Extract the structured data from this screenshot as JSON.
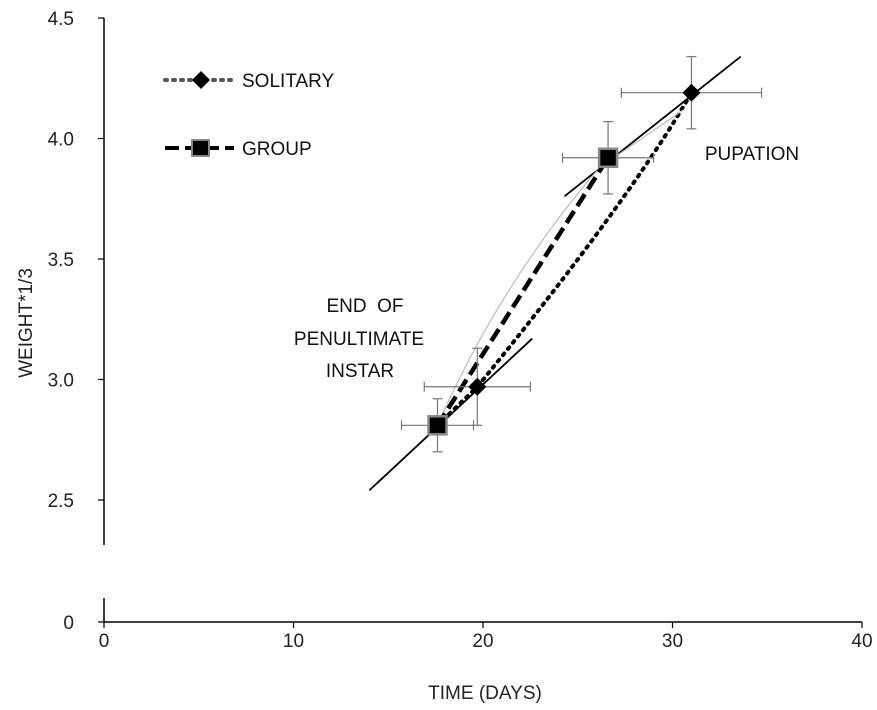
{
  "chart_data": {
    "type": "scatter",
    "title": "",
    "xlabel": "TIME (DAYS)",
    "ylabel": "WEIGHT*1/3",
    "xlim": [
      0,
      40
    ],
    "ylim_upper": [
      2.5,
      4.5
    ],
    "ylim_lower": [
      0,
      0
    ],
    "x_ticks": [
      "0",
      "10",
      "20",
      "30",
      "40"
    ],
    "y_ticks": [
      "0",
      "2.5",
      "3.0",
      "3.5",
      "4.0",
      "4.5"
    ],
    "legend_position": "top-left",
    "y_axis_break": true,
    "series": [
      {
        "name": "SOLITARY",
        "marker": "diamond",
        "line_style": "dotted",
        "color": "#000000",
        "x": [
          19.7,
          31.0
        ],
        "y": [
          2.97,
          4.19
        ],
        "x_err": [
          2.8,
          3.7
        ],
        "y_err": [
          0.16,
          0.15
        ]
      },
      {
        "name": "GROUP",
        "marker": "square",
        "line_style": "dashed",
        "color": "#000000",
        "x": [
          17.6,
          26.6
        ],
        "y": [
          2.81,
          3.92
        ],
        "x_err": [
          1.9,
          2.4
        ],
        "y_err": [
          0.11,
          0.15
        ]
      }
    ],
    "annotations": [
      "END  OF",
      "PENULTIMATE",
      "INSTAR",
      "PUPATION"
    ]
  }
}
